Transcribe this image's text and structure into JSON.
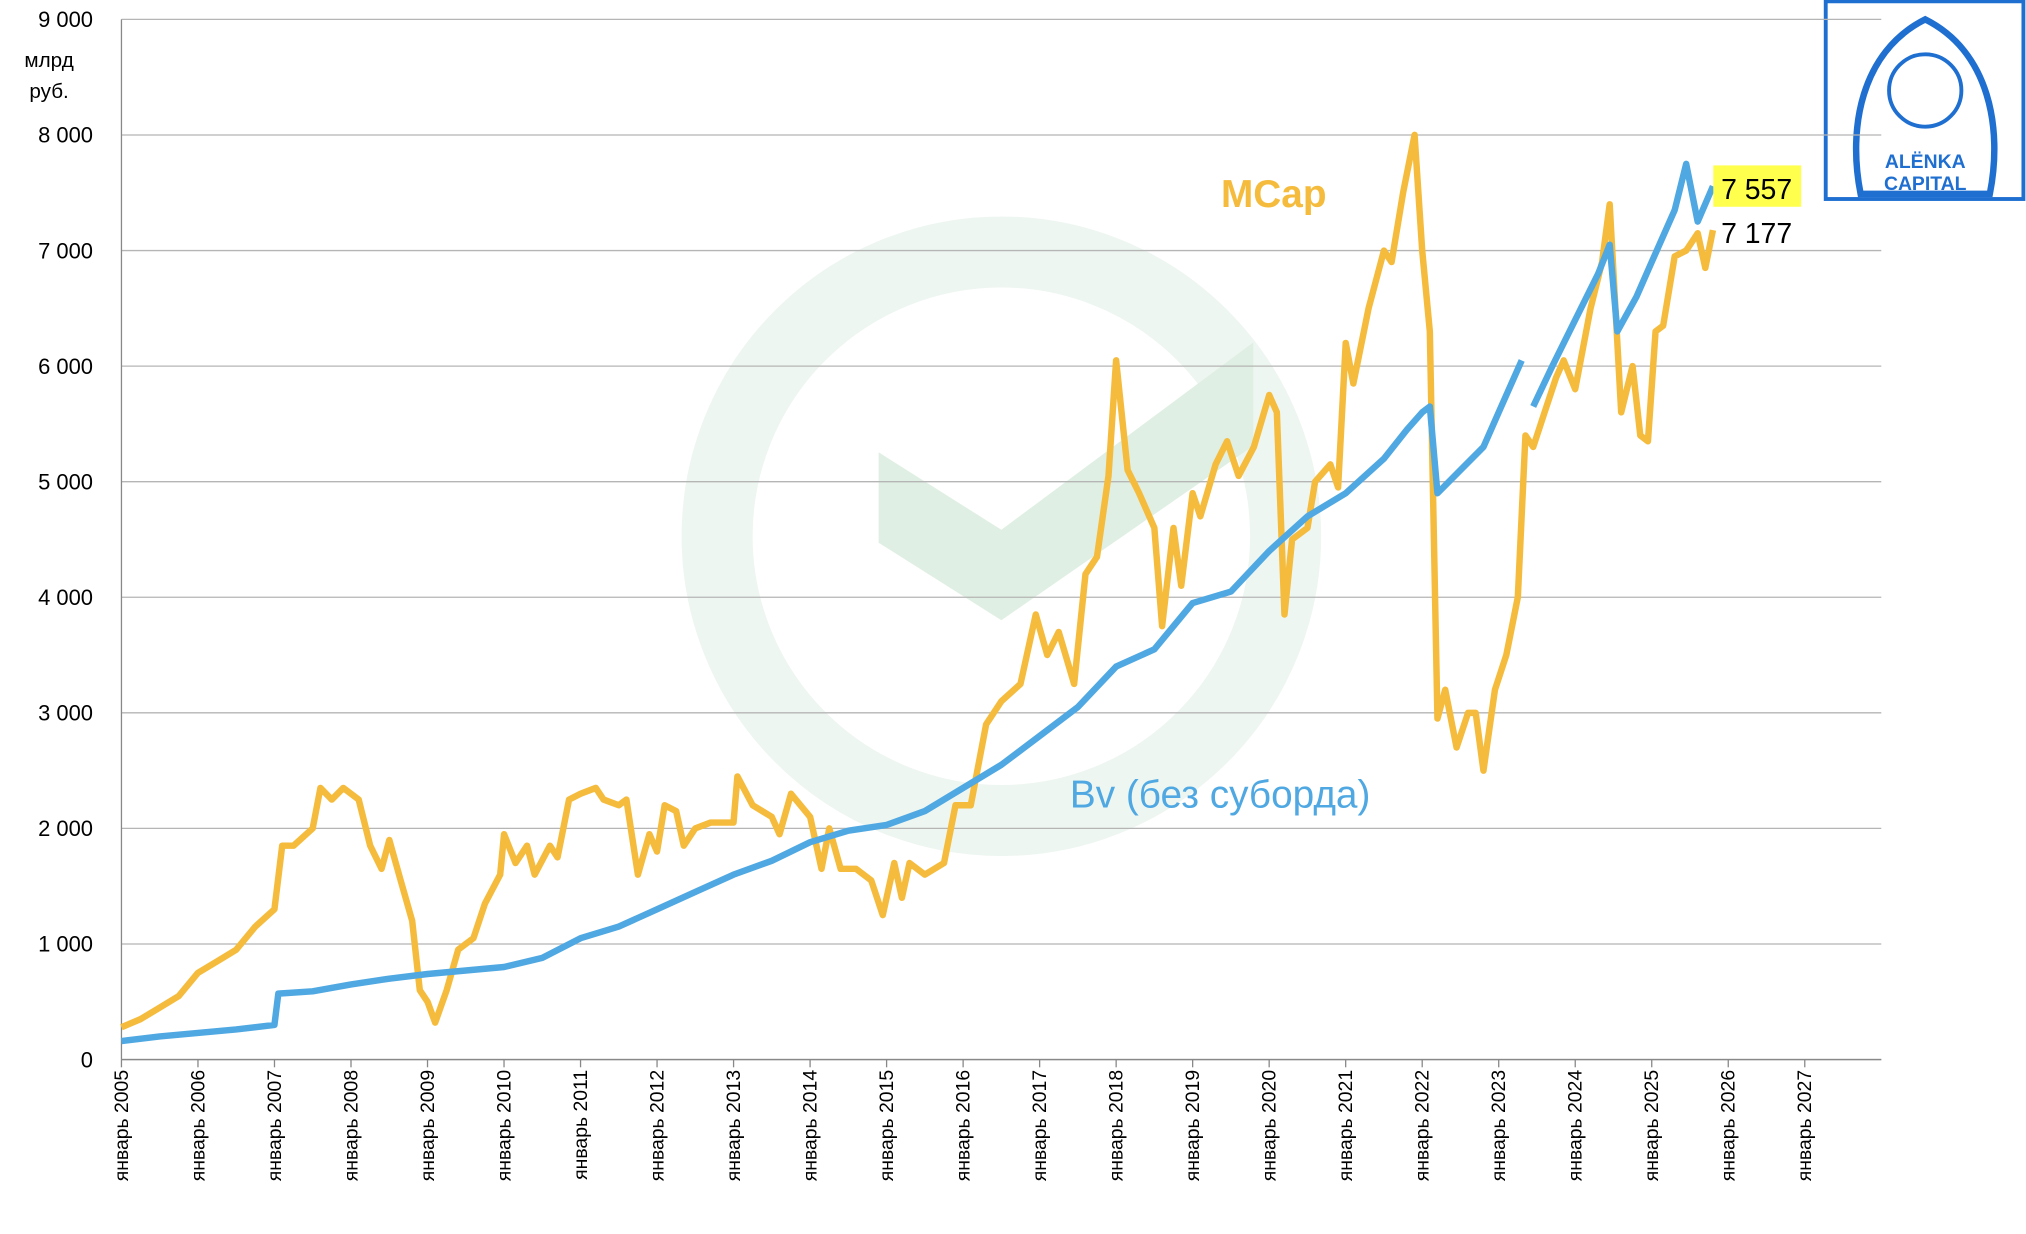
{
  "chart_data": {
    "type": "line",
    "y_unit_lines": [
      "млрд",
      "руб."
    ],
    "xlim": [
      2005,
      2028
    ],
    "xticks": [
      {
        "value": 2005,
        "label": "январь 2005"
      },
      {
        "value": 2006,
        "label": "январь 2006"
      },
      {
        "value": 2007,
        "label": "январь 2007"
      },
      {
        "value": 2008,
        "label": "январь 2008"
      },
      {
        "value": 2009,
        "label": "январь 2009"
      },
      {
        "value": 2010,
        "label": "январь 2010"
      },
      {
        "value": 2011,
        "label": "январь 2011"
      },
      {
        "value": 2012,
        "label": "январь 2012"
      },
      {
        "value": 2013,
        "label": "январь 2013"
      },
      {
        "value": 2014,
        "label": "январь 2014"
      },
      {
        "value": 2015,
        "label": "январь 2015"
      },
      {
        "value": 2016,
        "label": "январь 2016"
      },
      {
        "value": 2017,
        "label": "январь 2017"
      },
      {
        "value": 2018,
        "label": "январь 2018"
      },
      {
        "value": 2019,
        "label": "январь 2019"
      },
      {
        "value": 2020,
        "label": "январь 2020"
      },
      {
        "value": 2021,
        "label": "январь 2021"
      },
      {
        "value": 2022,
        "label": "январь 2022"
      },
      {
        "value": 2023,
        "label": "январь 2023"
      },
      {
        "value": 2024,
        "label": "январь 2024"
      },
      {
        "value": 2025,
        "label": "январь 2025"
      },
      {
        "value": 2026,
        "label": "январь 2026"
      },
      {
        "value": 2027,
        "label": "январь 2027"
      }
    ],
    "ylim": [
      0,
      9000
    ],
    "yticks": [
      0,
      {
        "value": 1000,
        "label": "1 000"
      },
      {
        "value": 2000,
        "label": "2 000"
      },
      {
        "value": 3000,
        "label": "3 000"
      },
      {
        "value": 4000,
        "label": "4 000"
      },
      {
        "value": 5000,
        "label": "5 000"
      },
      {
        "value": 6000,
        "label": "6 000"
      },
      {
        "value": 7000,
        "label": "7 000"
      },
      {
        "value": 8000,
        "label": "8 000"
      },
      {
        "value": 9000,
        "label": "9 000"
      }
    ],
    "grid": true,
    "series": [
      {
        "name": "MCap",
        "color": "#f5bb3c",
        "end_label": "7 177",
        "x": [
          2005,
          2005.25,
          2005.5,
          2005.75,
          2006,
          2006.25,
          2006.5,
          2006.75,
          2007,
          2007.1,
          2007.25,
          2007.5,
          2007.6,
          2007.75,
          2007.9,
          2008.1,
          2008.25,
          2008.4,
          2008.5,
          2008.65,
          2008.8,
          2008.9,
          2009,
          2009.1,
          2009.25,
          2009.4,
          2009.6,
          2009.75,
          2009.95,
          2010,
          2010.15,
          2010.3,
          2010.4,
          2010.6,
          2010.7,
          2010.85,
          2011,
          2011.2,
          2011.3,
          2011.5,
          2011.6,
          2011.75,
          2011.9,
          2012,
          2012.1,
          2012.25,
          2012.35,
          2012.5,
          2012.7,
          2013,
          2013.05,
          2013.25,
          2013.5,
          2013.6,
          2013.75,
          2014,
          2014.15,
          2014.25,
          2014.4,
          2014.6,
          2014.8,
          2014.95,
          2015.1,
          2015.2,
          2015.3,
          2015.5,
          2015.75,
          2015.9,
          2016.1,
          2016.3,
          2016.5,
          2016.75,
          2016.95,
          2017.1,
          2017.25,
          2017.45,
          2017.6,
          2017.75,
          2017.9,
          2018,
          2018.15,
          2018.3,
          2018.5,
          2018.6,
          2018.75,
          2018.85,
          2019,
          2019.1,
          2019.3,
          2019.45,
          2019.6,
          2019.8,
          2020,
          2020.1,
          2020.2,
          2020.3,
          2020.5,
          2020.6,
          2020.8,
          2020.9,
          2021,
          2021.1,
          2021.3,
          2021.5,
          2021.6,
          2021.75,
          2021.9,
          2022,
          2022.1,
          2022.2,
          2022.3,
          2022.45,
          2022.6,
          2022.7,
          2022.8,
          2022.95,
          2023.1,
          2023.25,
          2023.35,
          2023.45,
          2023.6,
          2023.75,
          2023.85,
          2024,
          2024.2,
          2024.35,
          2024.45,
          2024.6,
          2024.75,
          2024.85,
          2024.95,
          2025.05,
          2025.15,
          2025.3,
          2025.45,
          2025.6,
          2025.7,
          2025.8
        ],
        "values": [
          280,
          350,
          450,
          550,
          750,
          850,
          950,
          1150,
          1300,
          1850,
          1850,
          2000,
          2350,
          2250,
          2350,
          2250,
          1850,
          1650,
          1900,
          1550,
          1200,
          600,
          500,
          320,
          600,
          950,
          1050,
          1350,
          1600,
          1950,
          1700,
          1850,
          1600,
          1850,
          1750,
          2250,
          2300,
          2350,
          2250,
          2200,
          2250,
          1600,
          1950,
          1800,
          2200,
          2150,
          1850,
          2000,
          2050,
          2050,
          2450,
          2200,
          2100,
          1950,
          2300,
          2100,
          1650,
          2000,
          1650,
          1650,
          1550,
          1250,
          1700,
          1400,
          1700,
          1600,
          1700,
          2200,
          2200,
          2900,
          3100,
          3250,
          3850,
          3500,
          3700,
          3250,
          4200,
          4350,
          5050,
          6050,
          5100,
          4900,
          4600,
          3750,
          4600,
          4100,
          4900,
          4700,
          5150,
          5350,
          5050,
          5300,
          5750,
          5600,
          3850,
          4500,
          4600,
          5000,
          5150,
          4950,
          6200,
          5850,
          6500,
          7000,
          6900,
          7500,
          8000,
          7000,
          6300,
          2950,
          3200,
          2700,
          3000,
          3000,
          2500,
          3200,
          3500,
          4000,
          5400,
          5300,
          5600,
          5900,
          6050,
          5800,
          6500,
          6900,
          7400,
          5600,
          6000,
          5400,
          5350,
          6300,
          6350,
          6950,
          7000,
          7150,
          6850,
          7177
        ]
      },
      {
        "name": "Bv (без суборда)",
        "color": "#4fa8e2",
        "end_label": "7 557",
        "x": [
          2005,
          2005.5,
          2006,
          2006.5,
          2007,
          2007.05,
          2007.5,
          2008,
          2008.5,
          2009,
          2009.5,
          2010,
          2010.5,
          2011,
          2011.5,
          2012,
          2012.5,
          2013,
          2013.5,
          2014,
          2014.5,
          2015,
          2015.5,
          2016,
          2016.5,
          2017,
          2017.5,
          2018,
          2018.5,
          2019,
          2019.5,
          2020,
          2020.5,
          2021,
          2021.5,
          2021.8,
          2022,
          2022.1,
          2022.2,
          2022.5,
          2022.8,
          2023,
          2023.3,
          2023.38,
          2023.45,
          2023.7,
          2024,
          2024.3,
          2024.45,
          2024.55,
          2024.8,
          2025,
          2025.3,
          2025.45,
          2025.6,
          2025.8
        ],
        "values": [
          160,
          200,
          230,
          260,
          300,
          570,
          590,
          650,
          700,
          740,
          770,
          800,
          880,
          1050,
          1150,
          1300,
          1450,
          1600,
          1720,
          1880,
          1980,
          2030,
          2150,
          2350,
          2550,
          2800,
          3050,
          3400,
          3550,
          3950,
          4050,
          4400,
          4700,
          4900,
          5200,
          5450,
          5600,
          5650,
          4900,
          5100,
          5300,
          5600,
          6050,
          null,
          5650,
          6000,
          6400,
          6800,
          7050,
          6300,
          6600,
          6900,
          7350,
          7750,
          7250,
          7557
        ]
      }
    ],
    "logo_lines": [
      "ALËNKA",
      "CAPITAL"
    ]
  }
}
